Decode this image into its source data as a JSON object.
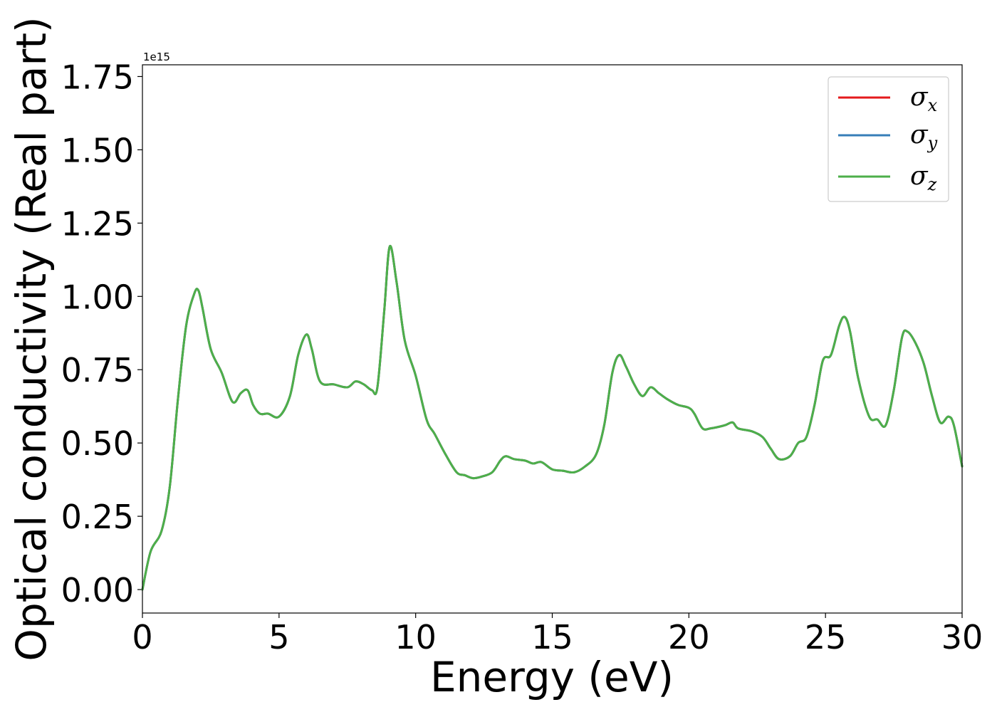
{
  "chart_data": {
    "type": "line",
    "xlabel": "Energy (eV)",
    "ylabel": "Optical conductivity (Real part)",
    "y_offset_text": "1e15",
    "xlim": [
      0,
      30
    ],
    "ylim": [
      -0.08,
      1.79
    ],
    "x_ticks": [
      0,
      5,
      10,
      15,
      20,
      25,
      30
    ],
    "x_tick_labels": [
      "0",
      "5",
      "10",
      "15",
      "20",
      "25",
      "30"
    ],
    "y_ticks": [
      0.0,
      0.25,
      0.5,
      0.75,
      1.0,
      1.25,
      1.5,
      1.75
    ],
    "y_tick_labels": [
      "0.00",
      "0.25",
      "0.50",
      "0.75",
      "1.00",
      "1.25",
      "1.50",
      "1.75"
    ],
    "y_scale_factor": 1000000000000000.0,
    "grid": false,
    "legend_position": "upper right",
    "x": [
      0,
      0.3,
      0.7,
      1.0,
      1.3,
      1.6,
      1.9,
      2.05,
      2.2,
      2.5,
      2.9,
      3.3,
      3.6,
      3.85,
      4.05,
      4.3,
      4.6,
      5.0,
      5.4,
      5.7,
      6.0,
      6.2,
      6.5,
      7.0,
      7.5,
      7.8,
      8.1,
      8.4,
      8.6,
      8.85,
      9.05,
      9.3,
      9.6,
      10.0,
      10.4,
      10.7,
      11.1,
      11.5,
      11.8,
      12.1,
      12.4,
      12.8,
      13.1,
      13.3,
      13.6,
      14.0,
      14.3,
      14.6,
      15.0,
      15.4,
      15.8,
      16.2,
      16.6,
      16.9,
      17.2,
      17.45,
      17.7,
      18.0,
      18.3,
      18.6,
      18.9,
      19.2,
      19.6,
      20.0,
      20.2,
      20.5,
      20.8,
      21.3,
      21.6,
      21.8,
      22.3,
      22.7,
      23.0,
      23.3,
      23.7,
      24.0,
      24.3,
      24.6,
      24.9,
      25.2,
      25.5,
      25.7,
      25.9,
      26.2,
      26.6,
      26.9,
      27.2,
      27.5,
      27.8,
      28.0,
      28.3,
      28.6,
      28.9,
      29.2,
      29.5,
      29.7,
      30.0
    ],
    "series": [
      {
        "name": "σ_x",
        "color": "#e41a1c",
        "values": [
          0.0,
          0.13,
          0.2,
          0.35,
          0.65,
          0.9,
          1.01,
          1.02,
          0.96,
          0.82,
          0.74,
          0.64,
          0.67,
          0.68,
          0.63,
          0.6,
          0.6,
          0.59,
          0.66,
          0.8,
          0.87,
          0.82,
          0.71,
          0.7,
          0.69,
          0.71,
          0.7,
          0.68,
          0.69,
          0.95,
          1.17,
          1.05,
          0.85,
          0.73,
          0.58,
          0.53,
          0.46,
          0.4,
          0.39,
          0.38,
          0.385,
          0.4,
          0.44,
          0.455,
          0.445,
          0.44,
          0.43,
          0.435,
          0.41,
          0.405,
          0.4,
          0.42,
          0.46,
          0.56,
          0.74,
          0.8,
          0.76,
          0.7,
          0.66,
          0.69,
          0.67,
          0.65,
          0.63,
          0.62,
          0.6,
          0.55,
          0.55,
          0.56,
          0.57,
          0.55,
          0.54,
          0.52,
          0.48,
          0.445,
          0.455,
          0.5,
          0.52,
          0.63,
          0.78,
          0.8,
          0.9,
          0.93,
          0.88,
          0.72,
          0.59,
          0.58,
          0.56,
          0.68,
          0.86,
          0.88,
          0.84,
          0.77,
          0.66,
          0.57,
          0.59,
          0.56,
          0.42
        ]
      },
      {
        "name": "σ_y",
        "color": "#377eb8",
        "values": [
          0.0,
          0.13,
          0.2,
          0.35,
          0.65,
          0.9,
          1.01,
          1.02,
          0.96,
          0.82,
          0.74,
          0.64,
          0.67,
          0.68,
          0.63,
          0.6,
          0.6,
          0.59,
          0.66,
          0.8,
          0.87,
          0.82,
          0.71,
          0.7,
          0.69,
          0.71,
          0.7,
          0.68,
          0.69,
          0.95,
          1.17,
          1.05,
          0.85,
          0.73,
          0.58,
          0.53,
          0.46,
          0.4,
          0.39,
          0.38,
          0.385,
          0.4,
          0.44,
          0.455,
          0.445,
          0.44,
          0.43,
          0.435,
          0.41,
          0.405,
          0.4,
          0.42,
          0.46,
          0.56,
          0.74,
          0.8,
          0.76,
          0.7,
          0.66,
          0.69,
          0.67,
          0.65,
          0.63,
          0.62,
          0.6,
          0.55,
          0.55,
          0.56,
          0.57,
          0.55,
          0.54,
          0.52,
          0.48,
          0.445,
          0.455,
          0.5,
          0.52,
          0.63,
          0.78,
          0.8,
          0.9,
          0.93,
          0.88,
          0.72,
          0.59,
          0.58,
          0.56,
          0.68,
          0.86,
          0.88,
          0.84,
          0.77,
          0.66,
          0.57,
          0.59,
          0.56,
          0.42
        ]
      },
      {
        "name": "σ_z",
        "color": "#4daf4a",
        "values": [
          0.0,
          0.13,
          0.2,
          0.35,
          0.65,
          0.9,
          1.01,
          1.02,
          0.96,
          0.82,
          0.74,
          0.64,
          0.67,
          0.68,
          0.63,
          0.6,
          0.6,
          0.59,
          0.66,
          0.8,
          0.87,
          0.82,
          0.71,
          0.7,
          0.69,
          0.71,
          0.7,
          0.68,
          0.69,
          0.95,
          1.17,
          1.05,
          0.85,
          0.73,
          0.58,
          0.53,
          0.46,
          0.4,
          0.39,
          0.38,
          0.385,
          0.4,
          0.44,
          0.455,
          0.445,
          0.44,
          0.43,
          0.435,
          0.41,
          0.405,
          0.4,
          0.42,
          0.46,
          0.56,
          0.74,
          0.8,
          0.76,
          0.7,
          0.66,
          0.69,
          0.67,
          0.65,
          0.63,
          0.62,
          0.6,
          0.55,
          0.55,
          0.56,
          0.57,
          0.55,
          0.54,
          0.52,
          0.48,
          0.445,
          0.455,
          0.5,
          0.52,
          0.63,
          0.78,
          0.8,
          0.9,
          0.93,
          0.88,
          0.72,
          0.59,
          0.58,
          0.56,
          0.68,
          0.86,
          0.88,
          0.84,
          0.77,
          0.66,
          0.57,
          0.59,
          0.56,
          0.42
        ]
      }
    ],
    "legend": [
      {
        "symbol": "σ",
        "sub": "x"
      },
      {
        "symbol": "σ",
        "sub": "y"
      },
      {
        "symbol": "σ",
        "sub": "z"
      }
    ]
  }
}
